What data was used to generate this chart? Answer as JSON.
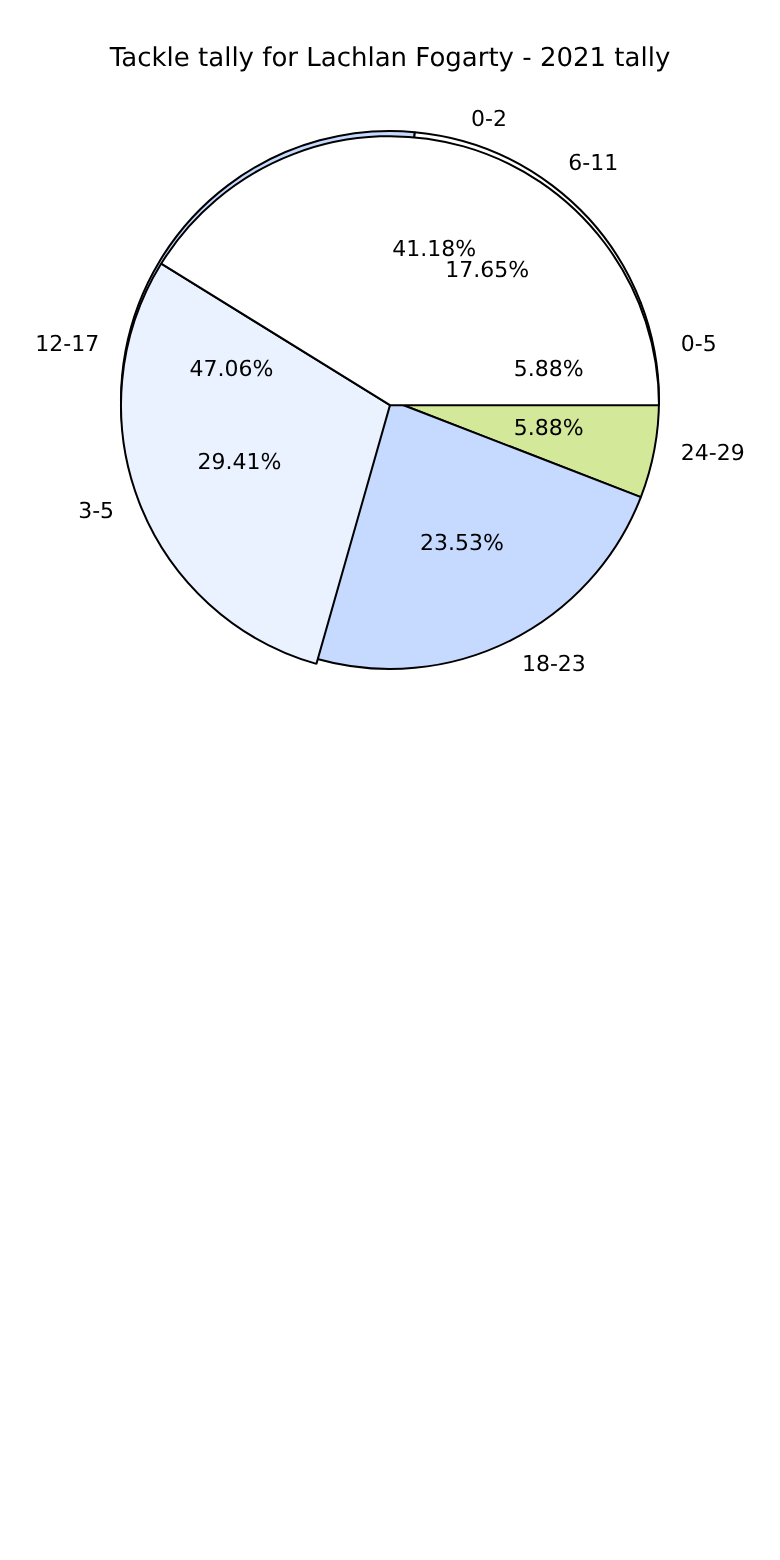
{
  "chart_data": [
    {
      "type": "pie",
      "title": "Tackle tally for Lachlan Fogarty - 2021 tally",
      "categories": [
        "0-5",
        "6-11",
        "12-17",
        "18-23",
        "24-29"
      ],
      "values": [
        5.88,
        17.65,
        47.06,
        23.53,
        5.88
      ],
      "colors": [
        "#ffffff",
        "#ffffff",
        "#c6d9ff",
        "#c6d9ff",
        "#d4e89a"
      ],
      "value_labels": [
        "5.88%",
        "17.65%",
        "47.06%",
        "23.53%",
        "5.88%"
      ]
    },
    {
      "type": "pie",
      "categories": [
        "0-2",
        "3-5"
      ],
      "values": [
        41.18,
        29.41
      ],
      "colors": [
        "#ffffff",
        "#eaf1ff"
      ],
      "value_labels": [
        "41.18%",
        "29.41%"
      ]
    }
  ]
}
